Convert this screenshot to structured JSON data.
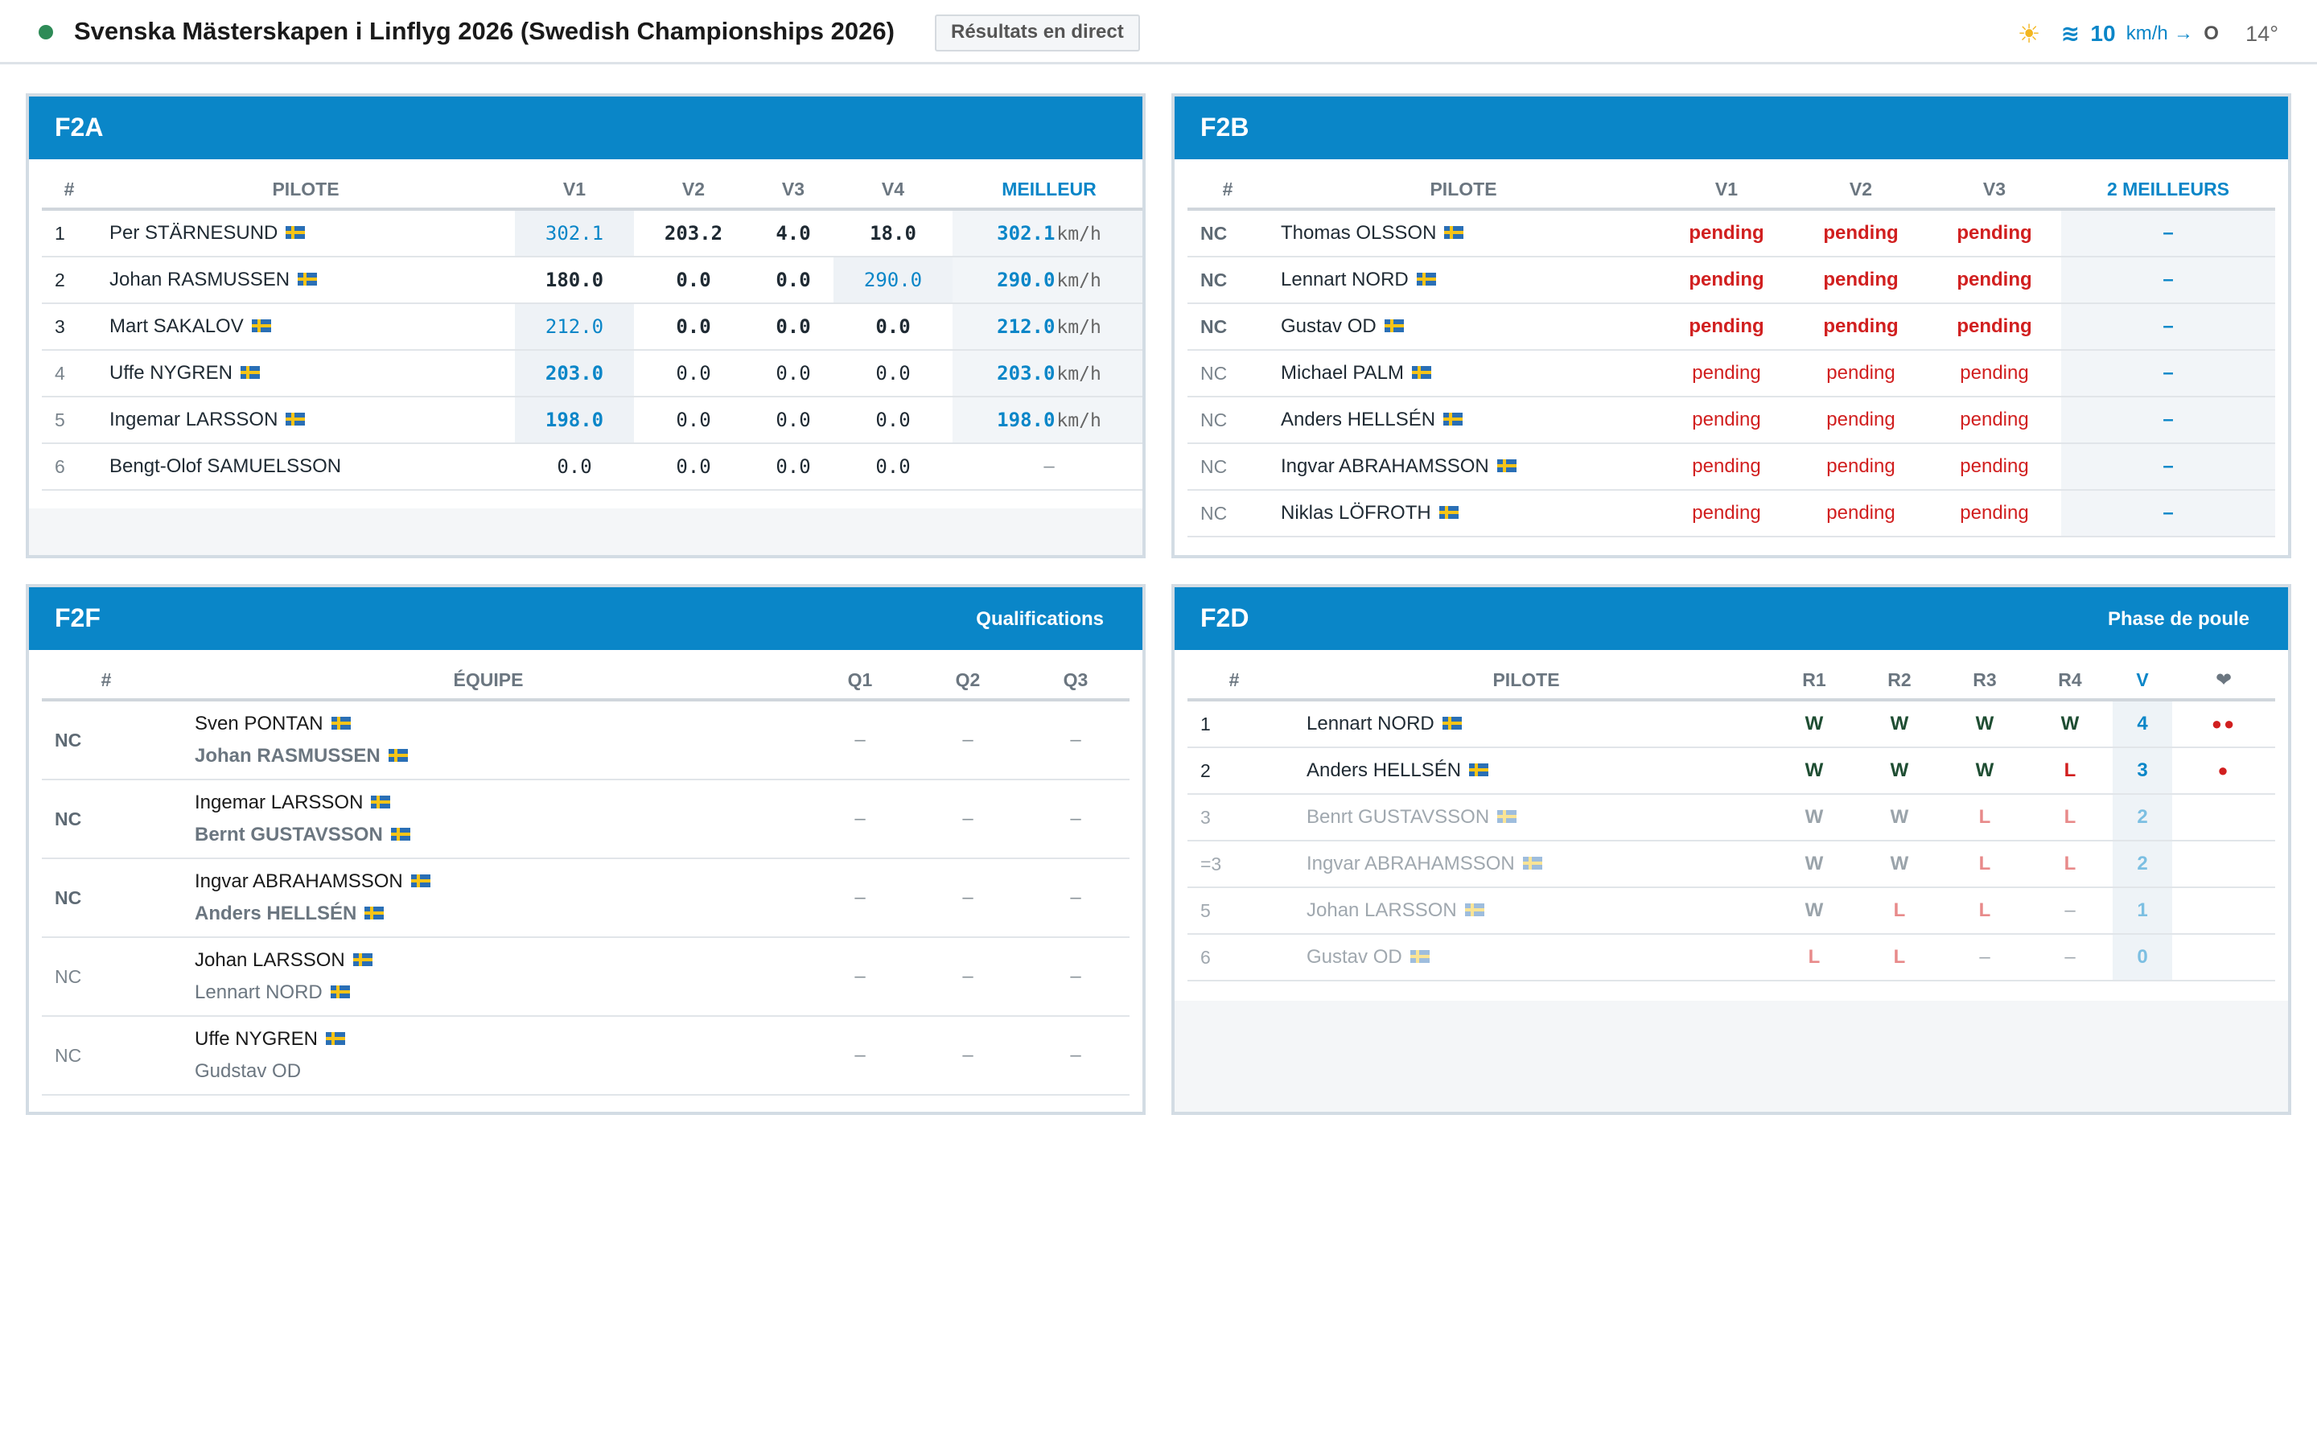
{
  "header": {
    "title": "Svenska Mästerskapen i Linflyg 2026 (Swedish Championships 2026)",
    "live_label": "Résultats en direct",
    "weather": {
      "sun_icon": "sun-icon",
      "wind_speed": "10",
      "wind_unit": "km/h",
      "wind_dir": "O",
      "temperature": "14°"
    }
  },
  "f2a": {
    "title": "F2A",
    "columns": [
      "#",
      "PILOTE",
      "V1",
      "V2",
      "V3",
      "V4",
      "MEILLEUR"
    ],
    "rows": [
      {
        "rank": "1",
        "name": "Per STÄRNESUND",
        "v1": "302.1",
        "v2": "203.2",
        "v3": "4.0",
        "v4": "18.0",
        "best": "302.1",
        "unit": "km/h"
      },
      {
        "rank": "2",
        "name": "Johan RASMUSSEN",
        "v1": "180.0",
        "v2": "0.0",
        "v3": "0.0",
        "v4": "290.0",
        "best": "290.0",
        "unit": "km/h"
      },
      {
        "rank": "3",
        "name": "Mart SAKALOV",
        "v1": "212.0",
        "v2": "0.0",
        "v3": "0.0",
        "v4": "0.0",
        "best": "212.0",
        "unit": "km/h"
      },
      {
        "rank": "4",
        "name": "Uffe NYGREN",
        "v1": "203.0",
        "v2": "0.0",
        "v3": "0.0",
        "v4": "0.0",
        "best": "203.0",
        "unit": "km/h"
      },
      {
        "rank": "5",
        "name": "Ingemar LARSSON",
        "v1": "198.0",
        "v2": "0.0",
        "v3": "0.0",
        "v4": "0.0",
        "best": "198.0",
        "unit": "km/h"
      },
      {
        "rank": "6",
        "name": "Bengt-Olof SAMUELSSON",
        "v1": "0.0",
        "v2": "0.0",
        "v3": "0.0",
        "v4": "0.0",
        "best": "–",
        "unit": ""
      }
    ]
  },
  "f2b": {
    "title": "F2B",
    "columns": [
      "#",
      "PILOTE",
      "V1",
      "V2",
      "V3",
      "2 MEILLEURS"
    ],
    "rows": [
      {
        "rank": "NC",
        "name": "Thomas OLSSON",
        "v1": "pending",
        "v2": "pending",
        "v3": "pending",
        "best": "–"
      },
      {
        "rank": "NC",
        "name": "Lennart NORD",
        "v1": "pending",
        "v2": "pending",
        "v3": "pending",
        "best": "–"
      },
      {
        "rank": "NC",
        "name": "Gustav OD",
        "v1": "pending",
        "v2": "pending",
        "v3": "pending",
        "best": "–"
      },
      {
        "rank": "NC",
        "name": "Michael PALM",
        "v1": "pending",
        "v2": "pending",
        "v3": "pending",
        "best": "–"
      },
      {
        "rank": "NC",
        "name": "Anders HELLSÉN",
        "v1": "pending",
        "v2": "pending",
        "v3": "pending",
        "best": "–"
      },
      {
        "rank": "NC",
        "name": "Ingvar ABRAHAMSSON",
        "v1": "pending",
        "v2": "pending",
        "v3": "pending",
        "best": "–"
      },
      {
        "rank": "NC",
        "name": "Niklas LÖFROTH",
        "v1": "pending",
        "v2": "pending",
        "v3": "pending",
        "best": "–"
      }
    ]
  },
  "f2f": {
    "title": "F2F",
    "subtitle": "Qualifications",
    "columns": [
      "#",
      "ÉQUIPE",
      "Q1",
      "Q2",
      "Q3"
    ],
    "rows": [
      {
        "rank": "NC",
        "pilot1": "Sven PONTAN",
        "pilot2": "Johan RASMUSSEN",
        "q1": "–",
        "q2": "–",
        "q3": "–"
      },
      {
        "rank": "NC",
        "pilot1": "Ingemar LARSSON",
        "pilot2": "Bernt GUSTAVSSON",
        "q1": "–",
        "q2": "–",
        "q3": "–"
      },
      {
        "rank": "NC",
        "pilot1": "Ingvar ABRAHAMSSON",
        "pilot2": "Anders HELLSÉN",
        "q1": "–",
        "q2": "–",
        "q3": "–"
      },
      {
        "rank": "NC",
        "pilot1": "Johan LARSSON",
        "pilot2": "Lennart NORD",
        "q1": "–",
        "q2": "–",
        "q3": "–"
      },
      {
        "rank": "NC",
        "pilot1": "Uffe NYGREN",
        "pilot2": "Gudstav OD",
        "q1": "–",
        "q2": "–",
        "q3": "–"
      }
    ]
  },
  "f2d": {
    "title": "F2D",
    "subtitle": "Phase de poule",
    "columns": [
      "#",
      "PILOTE",
      "R1",
      "R2",
      "R3",
      "R4",
      "V",
      "heart-icon"
    ],
    "rows": [
      {
        "rank": "1",
        "name": "Lennart NORD",
        "r1": "W",
        "r2": "W",
        "r3": "W",
        "r4": "W",
        "v": "4",
        "lives": "●●"
      },
      {
        "rank": "2",
        "name": "Anders HELLSÉN",
        "r1": "W",
        "r2": "W",
        "r3": "W",
        "r4": "L",
        "v": "3",
        "lives": "●"
      },
      {
        "rank": "3",
        "name": "Benrt GUSTAVSSON",
        "r1": "W",
        "r2": "W",
        "r3": "L",
        "r4": "L",
        "v": "2",
        "lives": ""
      },
      {
        "rank": "=3",
        "name": "Ingvar ABRAHAMSSON",
        "r1": "W",
        "r2": "W",
        "r3": "L",
        "r4": "L",
        "v": "2",
        "lives": ""
      },
      {
        "rank": "5",
        "name": "Johan LARSSON",
        "r1": "W",
        "r2": "L",
        "r3": "L",
        "r4": "–",
        "v": "1",
        "lives": ""
      },
      {
        "rank": "6",
        "name": "Gustav OD",
        "r1": "L",
        "r2": "L",
        "r3": "–",
        "r4": "–",
        "v": "0",
        "lives": ""
      }
    ]
  }
}
